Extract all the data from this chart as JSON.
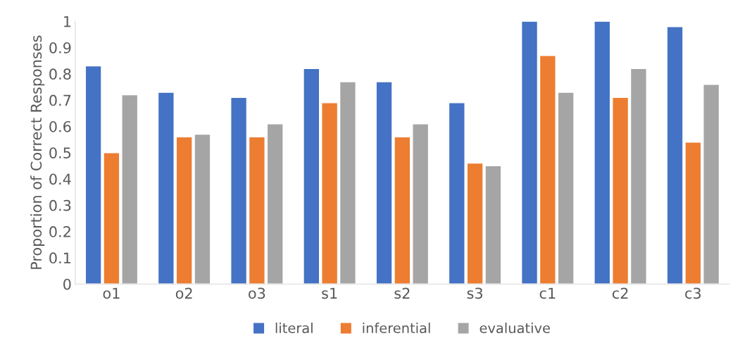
{
  "chart_data": {
    "type": "bar",
    "ylabel": "Proportion of Correct Responses",
    "categories": [
      "o1",
      "o2",
      "o3",
      "s1",
      "s2",
      "s3",
      "c1",
      "c2",
      "c3"
    ],
    "series": [
      {
        "name": "literal",
        "color": "#4472c4",
        "values": [
          0.83,
          0.73,
          0.71,
          0.82,
          0.77,
          0.69,
          1.0,
          1.0,
          0.98
        ]
      },
      {
        "name": "inferential",
        "color": "#ed7d31",
        "values": [
          0.5,
          0.56,
          0.56,
          0.69,
          0.56,
          0.46,
          0.87,
          0.71,
          0.54
        ]
      },
      {
        "name": "evaluative",
        "color": "#a5a5a5",
        "values": [
          0.72,
          0.57,
          0.61,
          0.77,
          0.61,
          0.45,
          0.73,
          0.82,
          0.76
        ]
      }
    ],
    "ylim": [
      0,
      1
    ],
    "yticks": [
      0,
      0.1,
      0.2,
      0.3,
      0.4,
      0.5,
      0.6,
      0.7,
      0.8,
      0.9,
      1
    ],
    "grid": false,
    "legend": "bottom"
  }
}
